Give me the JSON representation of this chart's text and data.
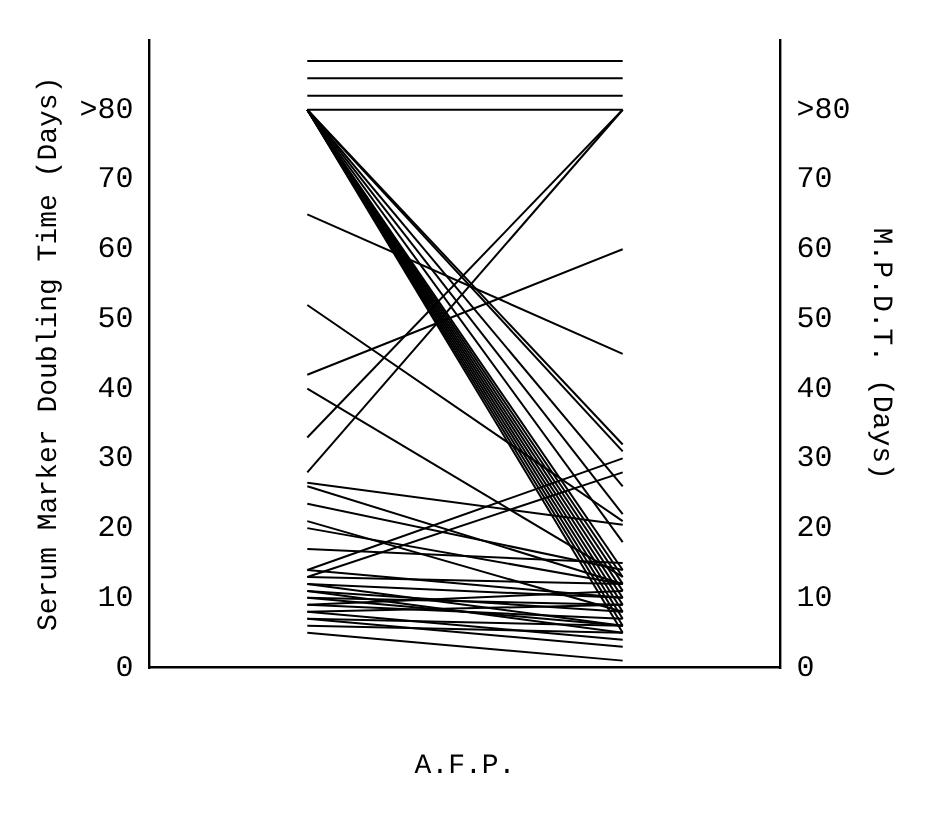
{
  "chart_data": {
    "type": "line",
    "xlabel": "A.F.P.",
    "ylabel": "Serum Marker Doubling Time (Days)",
    "y2label": "M.P.D.T. (Days)",
    "categories": [
      null,
      null
    ],
    "ylim": [
      0,
      90
    ],
    "yticks": [
      0,
      10,
      20,
      30,
      40,
      50,
      60,
      70,
      {
        "value": 80,
        "label": ">80"
      }
    ],
    "y2lim": [
      0,
      90
    ],
    "y2ticks": [
      0,
      10,
      20,
      30,
      40,
      50,
      60,
      70,
      {
        "value": 80,
        "label": ">80"
      }
    ],
    "grid": false,
    "legend": false,
    "marker": "none",
    "line_style": "solid",
    "series": [
      {
        "color": "#000000",
        "values": [
          87,
          87
        ]
      },
      {
        "color": "#000000",
        "values": [
          84.5,
          84.5
        ]
      },
      {
        "color": "#000000",
        "values": [
          82,
          82
        ]
      },
      {
        "color": "#000000",
        "values": [
          80,
          80
        ]
      },
      {
        "color": "#000000",
        "values": [
          80,
          8
        ]
      },
      {
        "color": "#000000",
        "values": [
          80,
          10
        ]
      },
      {
        "color": "#000000",
        "values": [
          80,
          12
        ]
      },
      {
        "color": "#000000",
        "values": [
          80,
          7
        ]
      },
      {
        "color": "#000000",
        "values": [
          80,
          9
        ]
      },
      {
        "color": "#000000",
        "values": [
          80,
          11
        ]
      },
      {
        "color": "#000000",
        "values": [
          80,
          6
        ]
      },
      {
        "color": "#000000",
        "values": [
          80,
          13
        ]
      },
      {
        "color": "#000000",
        "values": [
          80,
          5
        ]
      },
      {
        "color": "#000000",
        "values": [
          80,
          14
        ]
      },
      {
        "color": "#000000",
        "values": [
          80,
          22
        ]
      },
      {
        "color": "#000000",
        "values": [
          80,
          18
        ]
      },
      {
        "color": "#000000",
        "values": [
          80,
          26
        ]
      },
      {
        "color": "#000000",
        "values": [
          80,
          32
        ]
      },
      {
        "color": "#000000",
        "values": [
          80,
          31
        ]
      },
      {
        "color": "#000000",
        "values": [
          28,
          80
        ]
      },
      {
        "color": "#000000",
        "values": [
          33,
          80
        ]
      },
      {
        "color": "#000000",
        "values": [
          65,
          45
        ]
      },
      {
        "color": "#000000",
        "values": [
          52,
          21
        ]
      },
      {
        "color": "#000000",
        "values": [
          42,
          60
        ]
      },
      {
        "color": "#000000",
        "values": [
          40,
          13
        ]
      },
      {
        "color": "#000000",
        "values": [
          26.5,
          20.5
        ]
      },
      {
        "color": "#000000",
        "values": [
          26,
          12
        ]
      },
      {
        "color": "#000000",
        "values": [
          23.5,
          14
        ]
      },
      {
        "color": "#000000",
        "values": [
          21,
          8
        ]
      },
      {
        "color": "#000000",
        "values": [
          20,
          12
        ]
      },
      {
        "color": "#000000",
        "values": [
          17,
          15
        ]
      },
      {
        "color": "#000000",
        "values": [
          14,
          30
        ]
      },
      {
        "color": "#000000",
        "values": [
          13,
          28
        ]
      },
      {
        "color": "#000000",
        "values": [
          12,
          6
        ]
      },
      {
        "color": "#000000",
        "values": [
          11,
          5
        ]
      },
      {
        "color": "#000000",
        "values": [
          10,
          9
        ]
      },
      {
        "color": "#000000",
        "values": [
          9,
          7
        ]
      },
      {
        "color": "#000000",
        "values": [
          8,
          4
        ]
      },
      {
        "color": "#000000",
        "values": [
          7,
          3
        ]
      },
      {
        "color": "#000000",
        "values": [
          6,
          5
        ]
      },
      {
        "color": "#000000",
        "values": [
          5,
          1
        ]
      },
      {
        "color": "#000000",
        "values": [
          12,
          10
        ]
      },
      {
        "color": "#000000",
        "values": [
          11,
          8
        ]
      },
      {
        "color": "#000000",
        "values": [
          10,
          6
        ]
      },
      {
        "color": "#000000",
        "values": [
          9,
          11
        ]
      },
      {
        "color": "#000000",
        "values": [
          8,
          9
        ]
      },
      {
        "color": "#000000",
        "values": [
          7,
          6
        ]
      },
      {
        "color": "#000000",
        "values": [
          13,
          12
        ]
      },
      {
        "color": "#000000",
        "values": [
          14,
          10
        ]
      }
    ]
  }
}
